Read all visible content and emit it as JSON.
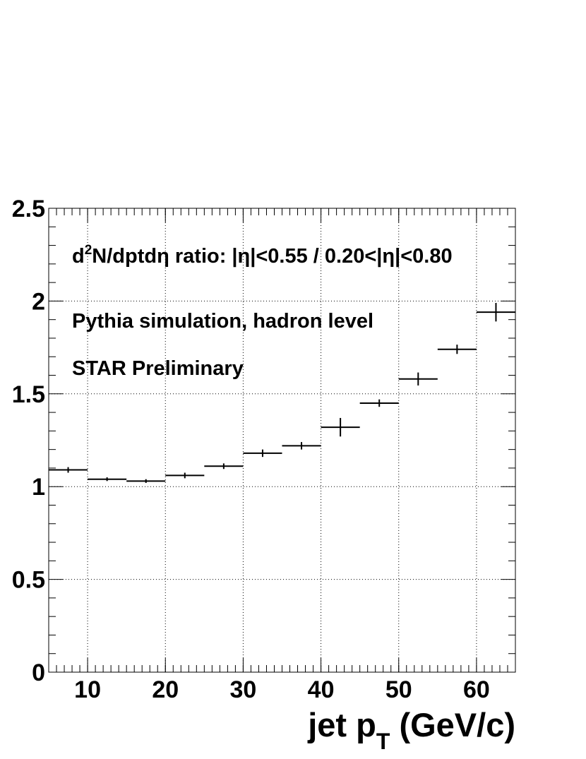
{
  "chart_data": {
    "type": "histogram",
    "bins": [
      5,
      10,
      15,
      20,
      25,
      30,
      35,
      40,
      45,
      50,
      55,
      60,
      65
    ],
    "values": [
      1.09,
      1.04,
      1.03,
      1.06,
      1.11,
      1.18,
      1.22,
      1.32,
      1.45,
      1.58,
      1.74,
      1.94
    ],
    "errors": [
      0.015,
      0.01,
      0.01,
      0.015,
      0.015,
      0.02,
      0.02,
      0.05,
      0.02,
      0.035,
      0.025,
      0.05
    ],
    "color": "#000000",
    "xlim": [
      5,
      65
    ],
    "xticks": [
      10,
      20,
      30,
      40,
      50,
      60
    ],
    "ylim": [
      0,
      2.5
    ],
    "yticks": [
      0,
      0.5,
      1,
      1.5,
      2,
      2.5
    ],
    "grid": true,
    "xlabel": [
      "jet p",
      "T",
      " (GeV/c)"
    ],
    "annotations": [
      [
        "d",
        "2",
        "N/dptdη ratio: |η|<0.55 / 0.20<|η|<0.80"
      ],
      [
        "Pythia simulation, hadron level"
      ],
      [
        "STAR Preliminary"
      ]
    ]
  }
}
